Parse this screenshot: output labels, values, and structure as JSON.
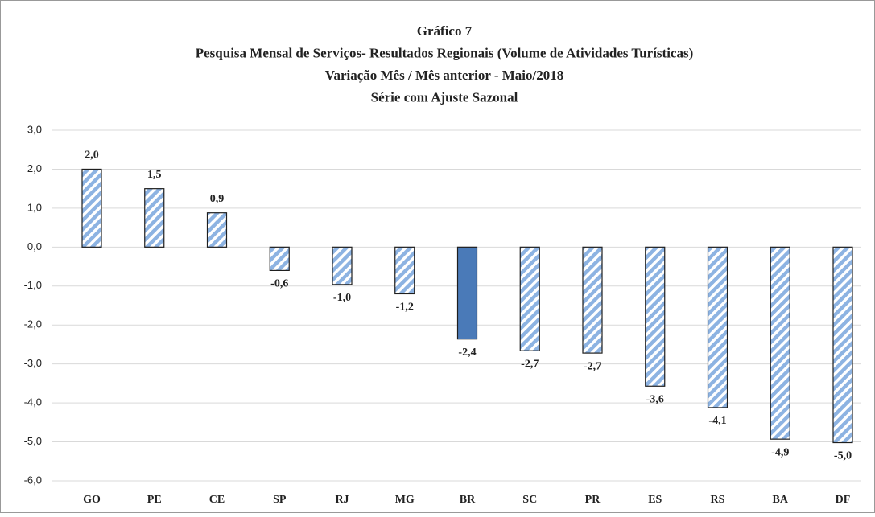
{
  "chart_data": {
    "type": "bar",
    "title": [
      "Gráfico 7",
      "Pesquisa Mensal de Serviços- Resultados Regionais (Volume de Atividades Turísticas)",
      "Variação Mês / Mês anterior - Maio/2018",
      "Série com Ajuste Sazonal"
    ],
    "categories": [
      "GO",
      "PE",
      "CE",
      "SP",
      "RJ",
      "MG",
      "BR",
      "SC",
      "PR",
      "ES",
      "RS",
      "BA",
      "DF"
    ],
    "values": [
      2.0,
      1.5,
      0.88,
      -0.6,
      -0.96,
      -1.2,
      -2.36,
      -2.66,
      -2.72,
      -3.57,
      -4.12,
      -4.93,
      -5.02
    ],
    "value_labels": [
      "2,0",
      "1,5",
      "0,9",
      "-0,6",
      "-1,0",
      "-1,2",
      "-2,4",
      "-2,7",
      "-2,7",
      "-3,6",
      "-4,1",
      "-4,9",
      "-5,0"
    ],
    "colors": [
      "#8db3e2",
      "#8db3e2",
      "#8db3e2",
      "#8db3e2",
      "#8db3e2",
      "#8db3e2",
      "#4a7ab8",
      "#8db3e2",
      "#8db3e2",
      "#8db3e2",
      "#8db3e2",
      "#8db3e2",
      "#8db3e2"
    ],
    "hatch": [
      true,
      true,
      true,
      true,
      true,
      true,
      false,
      true,
      true,
      true,
      true,
      true,
      true
    ],
    "ylim": [
      -6,
      3
    ],
    "yticks": [
      {
        "value": -6,
        "label": "-6,0"
      },
      {
        "value": -5,
        "label": "-5,0"
      },
      {
        "value": -4,
        "label": "-4,0"
      },
      {
        "value": -3,
        "label": "-3,0"
      },
      {
        "value": -2,
        "label": "-2,0"
      },
      {
        "value": -1,
        "label": "-1,0"
      },
      {
        "value": 0,
        "label": "0,0"
      },
      {
        "value": 1,
        "label": "1,0"
      },
      {
        "value": 2,
        "label": "2,0"
      },
      {
        "value": 3,
        "label": "3,0"
      }
    ],
    "grid": true
  }
}
